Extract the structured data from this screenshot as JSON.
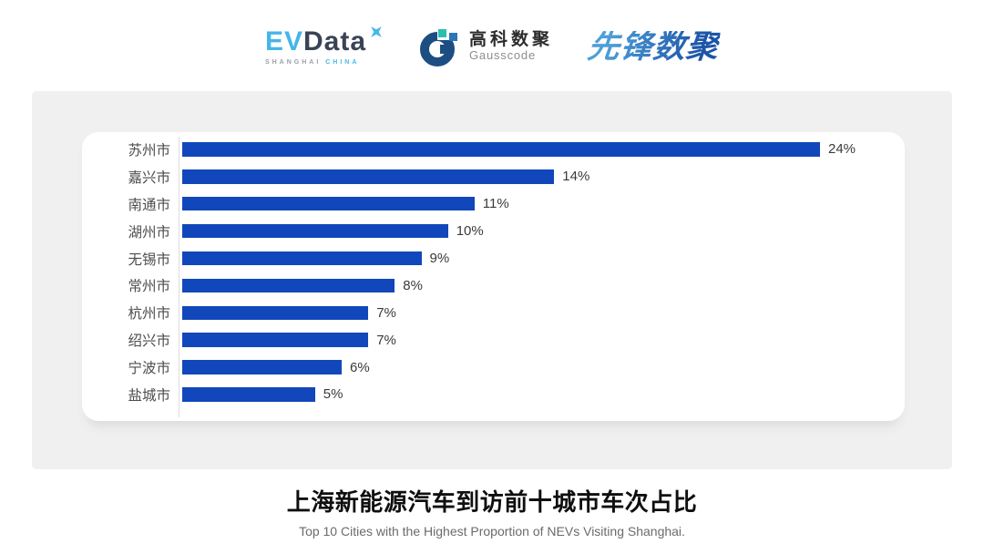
{
  "header": {
    "evdata": {
      "ev": "EV",
      "data": "Data",
      "sub_shanghai": "SHANGHAI",
      "sub_china": "CHINA"
    },
    "gausscode": {
      "name_cn": "高科数聚",
      "name_en": "Gausscode"
    },
    "pioneer": {
      "name": "先锋数聚"
    }
  },
  "chart_data": {
    "type": "bar",
    "orientation": "horizontal",
    "categories": [
      "苏州市",
      "嘉兴市",
      "南通市",
      "湖州市",
      "无锡市",
      "常州市",
      "杭州市",
      "绍兴市",
      "宁波市",
      "盐城市"
    ],
    "values": [
      24,
      14,
      11,
      10,
      9,
      8,
      7,
      7,
      6,
      5
    ],
    "value_suffix": "%",
    "xlim": [
      0,
      24
    ],
    "grid": false,
    "legend": false,
    "bar_color": "#1247bb",
    "title": "上海新能源汽车到访前十城市车次占比",
    "subtitle": "Top 10 Cities with the Highest Proportion of  NEVs Visiting Shanghai."
  },
  "footer": {
    "title": "上海新能源汽车到访前十城市车次占比",
    "subtitle": "Top 10 Cities with the Highest Proportion of  NEVs Visiting Shanghai."
  },
  "colors": {
    "bar": "#1247bb",
    "panel_bg": "#f0f0f0",
    "card_bg": "#ffffff",
    "axis_line": "#dcdcdc",
    "category_text": "#4d4d4d",
    "value_text": "#3a3a3a",
    "evdata_light_blue": "#45b6e8",
    "evdata_dark": "#3a4356",
    "gauss_dark_blue": "#1d4e81",
    "gauss_teal": "#2bbfae",
    "gauss_mid_blue": "#2e75b6",
    "pioneer_blue": "#2d78c8"
  }
}
